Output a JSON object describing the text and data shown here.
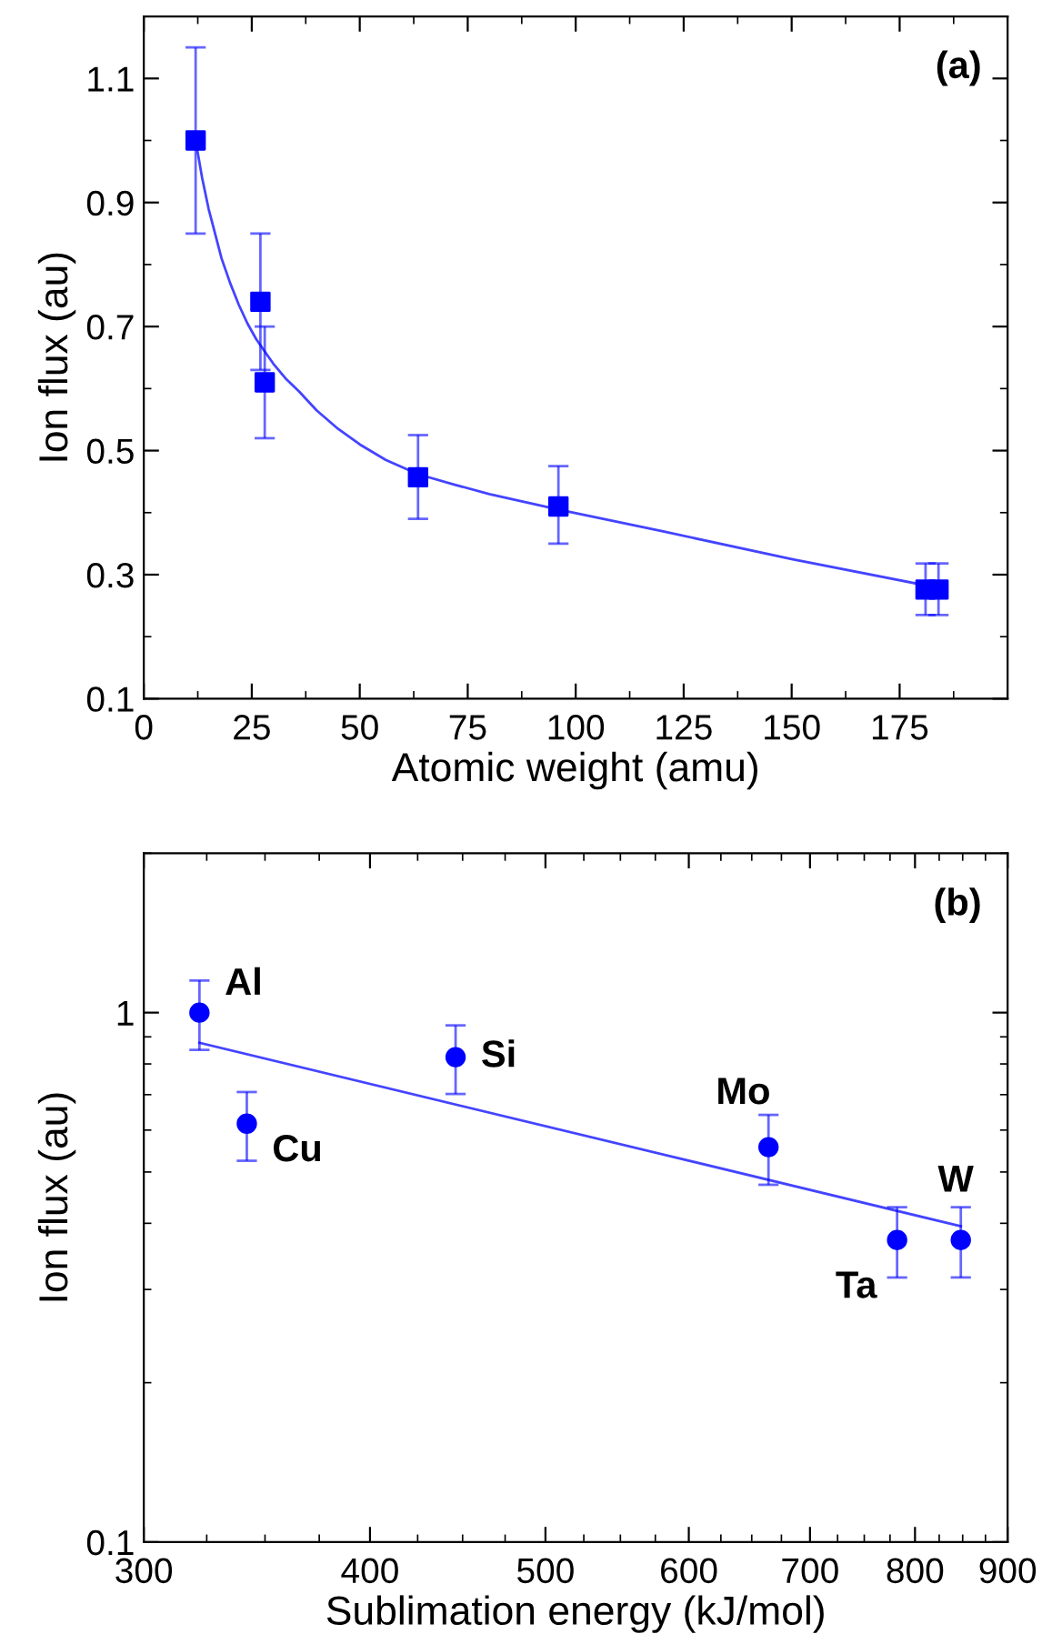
{
  "chart_data": [
    {
      "type": "scatter",
      "xlabel": "Atomic weight (amu)",
      "ylabel": "Ion flux (au)",
      "annotations": [
        "(a)"
      ],
      "xlim": [
        0,
        200
      ],
      "ylim": [
        0.1,
        1.2
      ],
      "xticks": [
        0,
        25,
        50,
        75,
        100,
        125,
        150,
        175
      ],
      "yticks": [
        0.1,
        0.3,
        0.5,
        0.7,
        0.9,
        1.1
      ],
      "series": [
        {
          "type": "line",
          "color": "#4444ff",
          "line_style": "solid",
          "marker": "none",
          "x": [
            12,
            13.5,
            15,
            16.5,
            18,
            20,
            22,
            24,
            26,
            28,
            30,
            33,
            36,
            40,
            45,
            50,
            56,
            63.5,
            72,
            80,
            96,
            120,
            150,
            183
          ],
          "values": [
            1.0,
            0.94,
            0.89,
            0.85,
            0.81,
            0.77,
            0.735,
            0.705,
            0.68,
            0.66,
            0.64,
            0.615,
            0.595,
            0.565,
            0.535,
            0.51,
            0.485,
            0.462,
            0.445,
            0.43,
            0.405,
            0.37,
            0.325,
            0.28
          ]
        },
        {
          "color": "#0000ff",
          "marker": "square",
          "x": [
            12,
            27,
            28,
            63.5,
            96,
            181,
            184
          ],
          "values": [
            1.0,
            0.74,
            0.61,
            0.457,
            0.41,
            0.276,
            0.276
          ],
          "errors": [
            [
              0.85,
              1.15
            ],
            [
              0.63,
              0.85
            ],
            [
              0.52,
              0.7
            ],
            [
              0.39,
              0.525
            ],
            [
              0.35,
              0.475
            ],
            [
              0.235,
              0.318
            ],
            [
              0.235,
              0.318
            ]
          ]
        }
      ]
    },
    {
      "type": "scatter",
      "xlabel": "Sublimation energy (kJ/mol)",
      "ylabel": "Ion flux (au)",
      "log": "xy",
      "annotations": [
        "(b)",
        {
          "text": "Al",
          "x": 322,
          "y": 1.0
        },
        {
          "text": "Cu",
          "x": 342,
          "y": 0.617
        },
        {
          "text": "Si",
          "x": 446,
          "y": 0.824
        },
        {
          "text": "Mo",
          "x": 664,
          "y": 0.557
        },
        {
          "text": "Ta",
          "x": 782,
          "y": 0.372
        },
        {
          "text": "W",
          "x": 848,
          "y": 0.372
        }
      ],
      "xlim": [
        300,
        900
      ],
      "ylim": [
        0.1,
        2
      ],
      "xticks": [
        300,
        400,
        500,
        600,
        700,
        800,
        900
      ],
      "yticks": [
        0.1,
        1
      ],
      "series": [
        {
          "type": "line",
          "color": "#4444ff",
          "line_style": "solid",
          "marker": "none",
          "x": [
            322,
            848
          ],
          "values": [
            0.877,
            0.395
          ]
        },
        {
          "color": "#0000ff",
          "marker": "circle",
          "x": [
            322,
            342,
            446,
            664,
            782,
            848
          ],
          "values": [
            1.0,
            0.617,
            0.824,
            0.557,
            0.372,
            0.372
          ],
          "errors": [
            [
              0.85,
              1.15
            ],
            [
              0.525,
              0.708
            ],
            [
              0.702,
              0.946
            ],
            [
              0.473,
              0.641
            ],
            [
              0.316,
              0.429
            ],
            [
              0.316,
              0.429
            ]
          ]
        }
      ]
    }
  ]
}
